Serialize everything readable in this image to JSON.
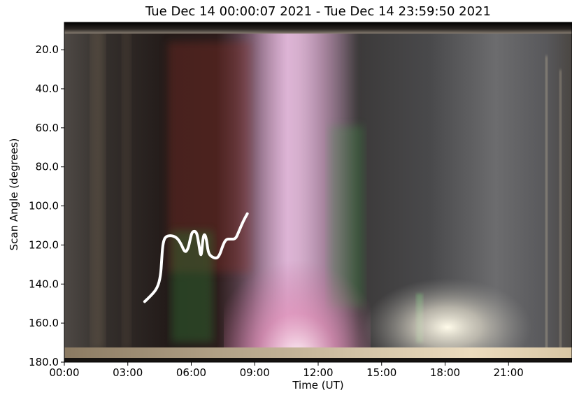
{
  "chart_data": {
    "type": "heatmap",
    "title": "Tue Dec 14 00:00:07 2021 - Tue Dec 14 23:59:50 2021",
    "xlabel": "Time (UT)",
    "ylabel": "Scan Angle (degrees)",
    "x_ticks": [
      {
        "value": 0,
        "label": "00:00"
      },
      {
        "value": 3,
        "label": "03:00"
      },
      {
        "value": 6,
        "label": "06:00"
      },
      {
        "value": 9,
        "label": "09:00"
      },
      {
        "value": 12,
        "label": "12:00"
      },
      {
        "value": 15,
        "label": "15:00"
      },
      {
        "value": 18,
        "label": "18:00"
      },
      {
        "value": 21,
        "label": "21:00"
      }
    ],
    "y_ticks": [
      {
        "value": 20,
        "label": "20.0"
      },
      {
        "value": 40,
        "label": "40.0"
      },
      {
        "value": 60,
        "label": "60.0"
      },
      {
        "value": 80,
        "label": "80.0"
      },
      {
        "value": 100,
        "label": "100.0"
      },
      {
        "value": 120,
        "label": "120.0"
      },
      {
        "value": 140,
        "label": "140.0"
      },
      {
        "value": 160,
        "label": "160.0"
      },
      {
        "value": 180,
        "label": "180.0"
      }
    ],
    "xlim": [
      0,
      24
    ],
    "ylim": [
      180,
      6
    ],
    "grid": false,
    "annotation_curve": {
      "color": "#ffffff",
      "points": [
        [
          3.8,
          149
        ],
        [
          4.1,
          146
        ],
        [
          4.4,
          142
        ],
        [
          4.55,
          136
        ],
        [
          4.6,
          128
        ],
        [
          4.65,
          120
        ],
        [
          4.75,
          116
        ],
        [
          5.0,
          115
        ],
        [
          5.3,
          116
        ],
        [
          5.5,
          119
        ],
        [
          5.7,
          124
        ],
        [
          5.85,
          122
        ],
        [
          5.95,
          117
        ],
        [
          6.05,
          113
        ],
        [
          6.25,
          113
        ],
        [
          6.35,
          119
        ],
        [
          6.45,
          126
        ],
        [
          6.5,
          123
        ],
        [
          6.55,
          117
        ],
        [
          6.62,
          114
        ],
        [
          6.72,
          117
        ],
        [
          6.8,
          124
        ],
        [
          6.95,
          126
        ],
        [
          7.2,
          127
        ],
        [
          7.35,
          125
        ],
        [
          7.5,
          120
        ],
        [
          7.65,
          117
        ],
        [
          7.85,
          117
        ],
        [
          8.1,
          117
        ],
        [
          8.25,
          113
        ],
        [
          8.45,
          108
        ],
        [
          8.65,
          104
        ]
      ]
    },
    "colors": {
      "background_dark": "#3a3634",
      "aurora_pink": "#d3a7cc",
      "aurora_green": "#4fa052",
      "aurora_red": "#7a2a25",
      "twilight_white": "#f2ecd9"
    }
  }
}
